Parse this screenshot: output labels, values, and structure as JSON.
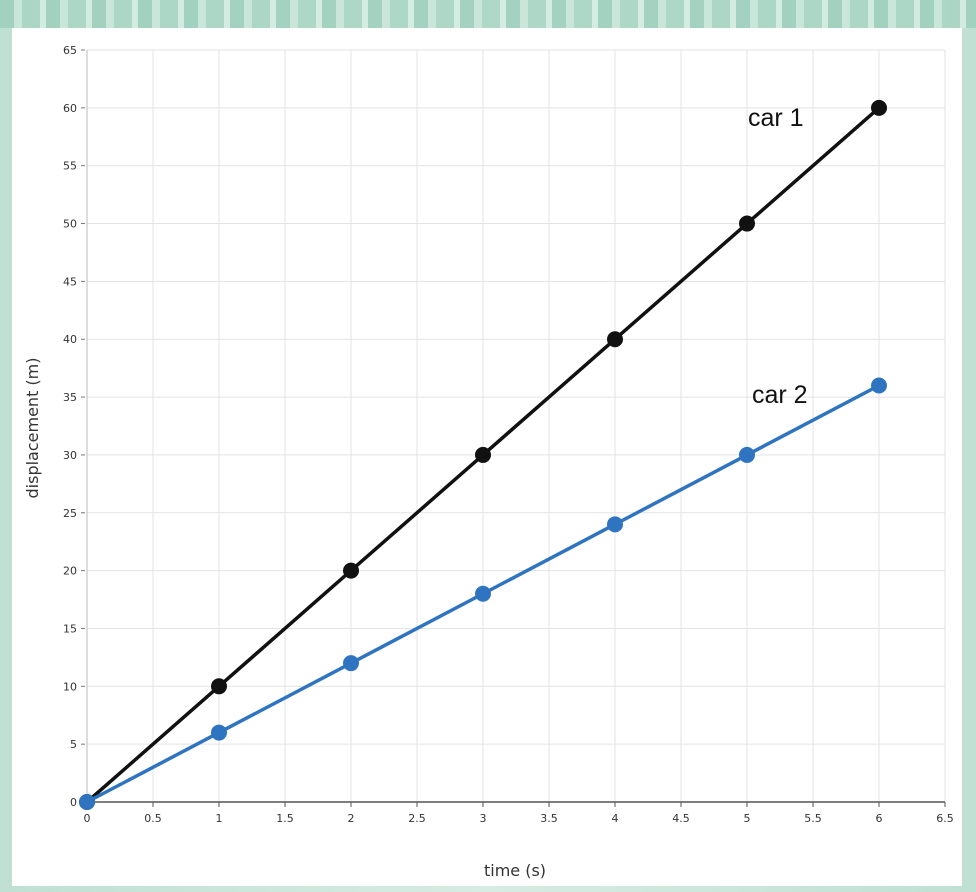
{
  "chart_data": {
    "type": "line",
    "title": "",
    "xlabel": "time (s)",
    "ylabel": "displacement (m)",
    "xlim": [
      0,
      6.5
    ],
    "ylim": [
      0,
      65
    ],
    "x_ticks": [
      0,
      0.5,
      1,
      1.5,
      2,
      2.5,
      3,
      3.5,
      4,
      4.5,
      5,
      5.5,
      6,
      6.5
    ],
    "x_tick_labels": [
      "0",
      "0.5",
      "1",
      "1.5",
      "2",
      "2.5",
      "3",
      "3.5",
      "4",
      "4.5",
      "5",
      "5.5",
      "6",
      "6.5"
    ],
    "y_ticks": [
      0,
      5,
      10,
      15,
      20,
      25,
      30,
      35,
      40,
      45,
      50,
      55,
      60,
      65
    ],
    "y_tick_labels": [
      "0",
      "5",
      "10",
      "15",
      "20",
      "25",
      "30",
      "35",
      "40",
      "45",
      "50",
      "55",
      "60",
      "65"
    ],
    "grid": true,
    "series": [
      {
        "name": "car 1",
        "color": "#111111",
        "x": [
          0,
          1,
          2,
          3,
          4,
          5,
          6
        ],
        "y": [
          0,
          10,
          20,
          30,
          40,
          50,
          60
        ]
      },
      {
        "name": "car 2",
        "color": "#2f74c0",
        "x": [
          0,
          1,
          2,
          3,
          4,
          5,
          6
        ],
        "y": [
          0,
          6,
          12,
          18,
          24,
          30,
          36
        ]
      }
    ]
  }
}
